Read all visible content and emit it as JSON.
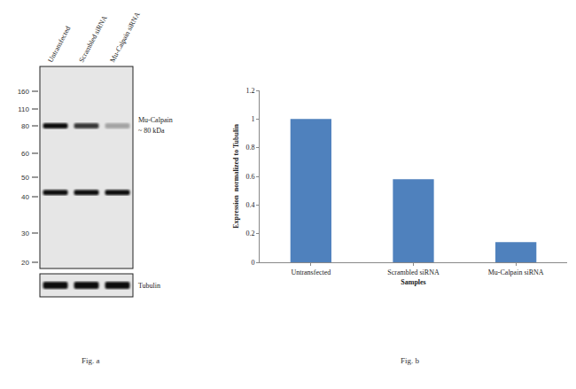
{
  "chart_data": {
    "type": "bar",
    "categories": [
      "Untransfected",
      "Scrambled siRNA",
      "Mu-Calpain siRNA"
    ],
    "values": [
      1.0,
      0.58,
      0.14
    ],
    "color": "#4f81bd",
    "x_label": "Samples",
    "y_label": "Expression  normalized to Tubulin",
    "ylim": [
      0,
      1.2
    ],
    "yticks": [
      0,
      0.2,
      0.4,
      0.6,
      0.8,
      1,
      1.2
    ],
    "grid": false
  },
  "blot": {
    "lanes": [
      "Untransfected",
      "Scrambled siRNA",
      "Mu-Calpain siRNA"
    ],
    "ladder": [
      160,
      110,
      80,
      60,
      50,
      40,
      30,
      20
    ],
    "bands": [
      {
        "label": [
          "Mu-Calpain",
          "~ 80 kDa"
        ],
        "kda": 80,
        "intensity": [
          1.0,
          0.8,
          0.3
        ]
      },
      {
        "kda": 42,
        "intensity": [
          1.0,
          1.0,
          1.0
        ]
      }
    ],
    "loading_control": {
      "label": "Tubulin",
      "intensity": [
        1.0,
        1.0,
        1.0
      ]
    }
  },
  "captions": [
    "Fig. a",
    "Fig. b"
  ]
}
